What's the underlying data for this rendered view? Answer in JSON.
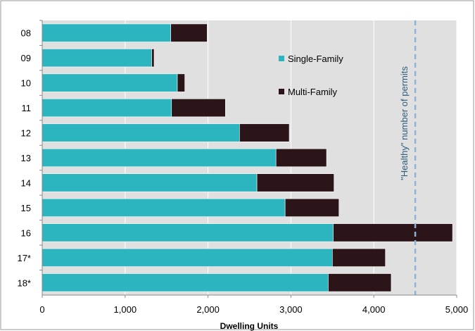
{
  "chart_data": {
    "type": "bar",
    "orientation": "horizontal",
    "stacked": true,
    "categories": [
      "08",
      "09",
      "10",
      "11",
      "12",
      "13",
      "14",
      "15",
      "16",
      "17*",
      "18*"
    ],
    "series": [
      {
        "name": "Single-Family",
        "color": "#2CB5BE",
        "values": [
          1550,
          1320,
          1630,
          1560,
          2380,
          2820,
          2590,
          2930,
          3510,
          3500,
          3450
        ]
      },
      {
        "name": "Multi-Family",
        "color": "#2B1518",
        "values": [
          440,
          30,
          90,
          650,
          600,
          610,
          930,
          650,
          1440,
          640,
          760
        ]
      }
    ],
    "xlabel": "Dwelling Units",
    "xlim": [
      0,
      5000
    ],
    "xticks": [
      0,
      1000,
      2000,
      3000,
      4000,
      5000
    ],
    "xtick_labels": [
      "0",
      "1,000",
      "2,000",
      "3,000",
      "4,000",
      "5,000"
    ],
    "grid": "vertical",
    "plot_background": "#E0E0E0",
    "legend_position": "upper-right-inside",
    "reference_line": {
      "value": 4500,
      "label": "\"Healthy\" number of permits",
      "color": "#8DB3D9",
      "style": "dashed"
    }
  }
}
